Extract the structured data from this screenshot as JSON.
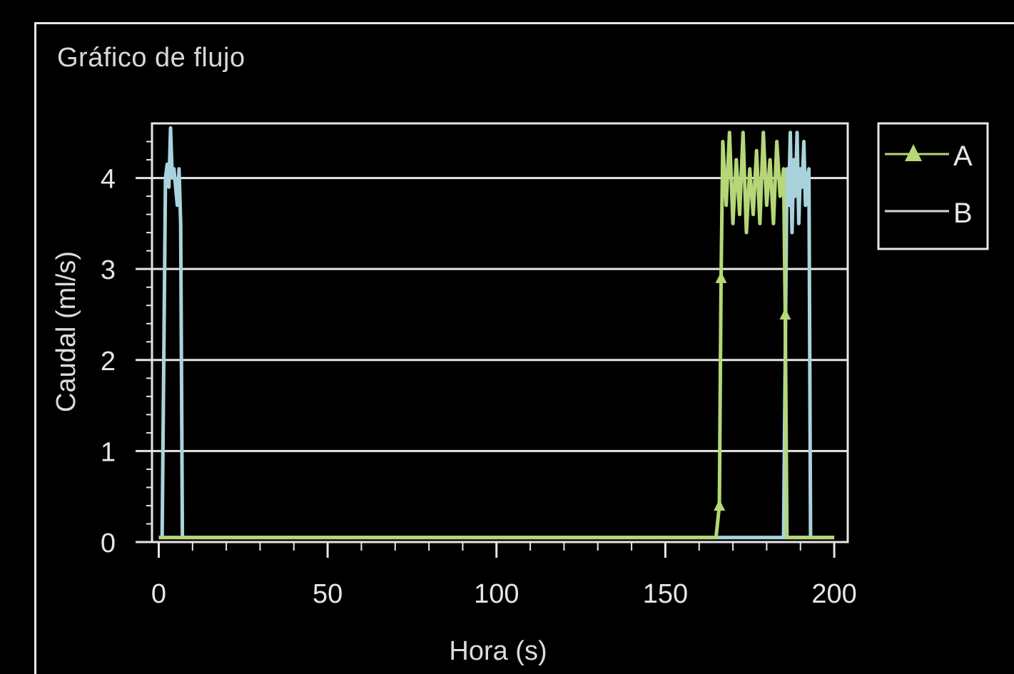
{
  "chart_data": {
    "type": "line",
    "title": "Gráfico de flujo",
    "xlabel": "Hora (s)",
    "ylabel": "Caudal (ml/s)",
    "xlim": [
      -2,
      204
    ],
    "ylim": [
      0,
      4.6
    ],
    "xticks": [
      0,
      50,
      100,
      150,
      200
    ],
    "yticks": [
      0,
      1,
      2,
      3,
      4
    ],
    "grid": "horizontal",
    "legend_position": "top-right",
    "series": [
      {
        "name": "A",
        "color": "#b5d777",
        "marker": "triangle",
        "x": [
          0,
          165,
          166,
          166.5,
          167,
          168,
          169,
          170,
          171,
          172,
          173,
          174,
          175,
          176,
          177,
          178,
          179,
          180,
          181,
          182,
          183,
          184,
          185,
          185.5,
          186,
          200
        ],
        "y": [
          0.05,
          0.05,
          0.4,
          2.9,
          4.4,
          3.7,
          4.5,
          3.5,
          4.2,
          3.6,
          4.5,
          3.4,
          4.1,
          3.6,
          4.3,
          3.5,
          4.5,
          3.7,
          4.2,
          3.5,
          4.4,
          3.8,
          4.1,
          2.5,
          0.05,
          0.05
        ]
      },
      {
        "name": "B",
        "color": "#a9d3dc",
        "marker": "none",
        "x": [
          0,
          1,
          2,
          2.5,
          3,
          3.5,
          4,
          4.5,
          5,
          5.5,
          6,
          6.5,
          7,
          200
        ],
        "y": [
          0.05,
          0.05,
          4.0,
          4.15,
          3.9,
          4.55,
          4.0,
          4.1,
          3.9,
          3.7,
          4.1,
          3.5,
          0.05,
          0.05
        ],
        "x2": [
          185,
          186,
          186.5,
          187,
          187.5,
          188,
          188.5,
          189,
          189.5,
          190,
          190.5,
          191,
          191.5,
          192,
          192.5,
          193
        ],
        "y2": [
          0.05,
          4.1,
          3.7,
          4.5,
          3.4,
          4.2,
          3.8,
          4.5,
          3.5,
          4.1,
          3.9,
          4.4,
          3.7,
          4.0,
          4.1,
          0.05
        ]
      }
    ]
  }
}
